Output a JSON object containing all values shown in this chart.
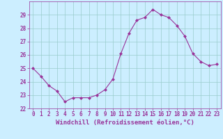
{
  "hours": [
    0,
    1,
    2,
    3,
    4,
    5,
    6,
    7,
    8,
    9,
    10,
    11,
    12,
    13,
    14,
    15,
    16,
    17,
    18,
    19,
    20,
    21,
    22,
    23
  ],
  "values": [
    25.0,
    24.4,
    23.7,
    23.3,
    22.5,
    22.8,
    22.8,
    22.8,
    23.0,
    23.4,
    24.2,
    26.1,
    27.6,
    28.6,
    28.8,
    29.4,
    29.0,
    28.8,
    28.2,
    27.4,
    26.1,
    25.5,
    25.2,
    25.3
  ],
  "line_color": "#993399",
  "marker": "D",
  "marker_size": 2,
  "bg_color": "#cceeff",
  "grid_color": "#99cccc",
  "xlabel": "Windchill (Refroidissement éolien,°C)",
  "ylim": [
    22,
    30
  ],
  "xlim": [
    -0.5,
    23.5
  ],
  "yticks": [
    22,
    23,
    24,
    25,
    26,
    27,
    28,
    29
  ],
  "xticks": [
    0,
    1,
    2,
    3,
    4,
    5,
    6,
    7,
    8,
    9,
    10,
    11,
    12,
    13,
    14,
    15,
    16,
    17,
    18,
    19,
    20,
    21,
    22,
    23
  ],
  "tick_label_size": 5.5,
  "xlabel_size": 6.5,
  "axis_color": "#993399",
  "spine_color": "#993399",
  "linewidth": 0.8
}
